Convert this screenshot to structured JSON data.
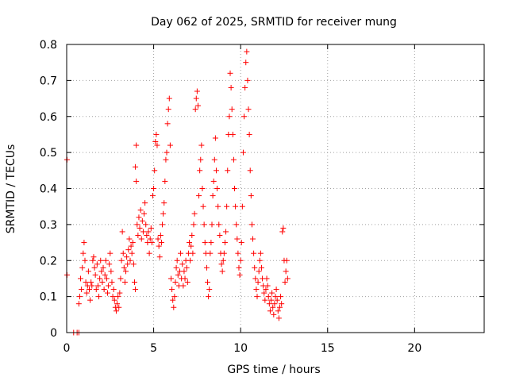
{
  "chart_data": {
    "type": "scatter",
    "title": "Day 062 of 2025, SRMTID for receiver mung",
    "xlabel": "GPS time / hours",
    "ylabel": "SRMTID / TECUs",
    "xlim": [
      0,
      24
    ],
    "ylim": [
      0,
      0.8
    ],
    "x_ticks": [
      0,
      5,
      10,
      15,
      20
    ],
    "y_ticks": [
      0,
      0.1,
      0.2,
      0.3,
      0.4,
      0.5,
      0.6,
      0.7,
      0.8
    ],
    "x_tick_labels": [
      "0",
      "5",
      "10",
      "15",
      "20"
    ],
    "y_tick_labels": [
      "0",
      "0.1",
      "0.2",
      "0.3",
      "0.4",
      "0.5",
      "0.6",
      "0.7",
      "0.8"
    ],
    "grid": true,
    "marker": "+",
    "series_color": "#ff0000",
    "points": [
      [
        0.02,
        0.48
      ],
      [
        0.02,
        0.16
      ],
      [
        0.4,
        0.0
      ],
      [
        0.6,
        0.0
      ],
      [
        0.7,
        0.0
      ],
      [
        0.7,
        0.08
      ],
      [
        0.75,
        0.1
      ],
      [
        0.8,
        0.15
      ],
      [
        0.85,
        0.12
      ],
      [
        0.9,
        0.18
      ],
      [
        0.95,
        0.22
      ],
      [
        1.0,
        0.25
      ],
      [
        1.05,
        0.2
      ],
      [
        1.1,
        0.14
      ],
      [
        1.15,
        0.11
      ],
      [
        1.2,
        0.13
      ],
      [
        1.25,
        0.17
      ],
      [
        1.3,
        0.12
      ],
      [
        1.35,
        0.09
      ],
      [
        1.4,
        0.14
      ],
      [
        1.45,
        0.13
      ],
      [
        1.5,
        0.2
      ],
      [
        1.55,
        0.21
      ],
      [
        1.6,
        0.18
      ],
      [
        1.65,
        0.16
      ],
      [
        1.7,
        0.12
      ],
      [
        1.75,
        0.19
      ],
      [
        1.8,
        0.13
      ],
      [
        1.85,
        0.1
      ],
      [
        1.9,
        0.15
      ],
      [
        1.95,
        0.2
      ],
      [
        2.0,
        0.17
      ],
      [
        2.05,
        0.14
      ],
      [
        2.1,
        0.18
      ],
      [
        2.15,
        0.12
      ],
      [
        2.2,
        0.16
      ],
      [
        2.25,
        0.2
      ],
      [
        2.3,
        0.15
      ],
      [
        2.35,
        0.11
      ],
      [
        2.4,
        0.13
      ],
      [
        2.45,
        0.19
      ],
      [
        2.5,
        0.22
      ],
      [
        2.55,
        0.17
      ],
      [
        2.6,
        0.14
      ],
      [
        2.65,
        0.1
      ],
      [
        2.7,
        0.12
      ],
      [
        2.75,
        0.09
      ],
      [
        2.8,
        0.07
      ],
      [
        2.85,
        0.06
      ],
      [
        2.9,
        0.08
      ],
      [
        2.95,
        0.1
      ],
      [
        3.0,
        0.07
      ],
      [
        3.05,
        0.11
      ],
      [
        3.1,
        0.15
      ],
      [
        3.15,
        0.2
      ],
      [
        3.2,
        0.28
      ],
      [
        3.25,
        0.22
      ],
      [
        3.3,
        0.18
      ],
      [
        3.35,
        0.14
      ],
      [
        3.4,
        0.17
      ],
      [
        3.45,
        0.21
      ],
      [
        3.5,
        0.19
      ],
      [
        3.55,
        0.23
      ],
      [
        3.6,
        0.26
      ],
      [
        3.65,
        0.2
      ],
      [
        3.7,
        0.24
      ],
      [
        3.75,
        0.22
      ],
      [
        3.8,
        0.25
      ],
      [
        3.85,
        0.19
      ],
      [
        3.9,
        0.14
      ],
      [
        3.95,
        0.12
      ],
      [
        3.95,
        0.46
      ],
      [
        4.0,
        0.42
      ],
      [
        4.0,
        0.52
      ],
      [
        4.05,
        0.3
      ],
      [
        4.1,
        0.27
      ],
      [
        4.15,
        0.32
      ],
      [
        4.2,
        0.29
      ],
      [
        4.25,
        0.34
      ],
      [
        4.3,
        0.26
      ],
      [
        4.35,
        0.31
      ],
      [
        4.4,
        0.28
      ],
      [
        4.45,
        0.33
      ],
      [
        4.5,
        0.36
      ],
      [
        4.55,
        0.3
      ],
      [
        4.6,
        0.27
      ],
      [
        4.65,
        0.25
      ],
      [
        4.7,
        0.28
      ],
      [
        4.75,
        0.22
      ],
      [
        4.8,
        0.26
      ],
      [
        4.85,
        0.29
      ],
      [
        4.9,
        0.25
      ],
      [
        4.95,
        0.38
      ],
      [
        5.0,
        0.4
      ],
      [
        5.05,
        0.45
      ],
      [
        5.1,
        0.53
      ],
      [
        5.15,
        0.55
      ],
      [
        5.2,
        0.52
      ],
      [
        5.25,
        0.26
      ],
      [
        5.3,
        0.24
      ],
      [
        5.35,
        0.21
      ],
      [
        5.4,
        0.27
      ],
      [
        5.45,
        0.25
      ],
      [
        5.5,
        0.3
      ],
      [
        5.55,
        0.33
      ],
      [
        5.6,
        0.36
      ],
      [
        5.65,
        0.42
      ],
      [
        5.7,
        0.48
      ],
      [
        5.75,
        0.5
      ],
      [
        5.8,
        0.58
      ],
      [
        5.85,
        0.62
      ],
      [
        5.9,
        0.65
      ],
      [
        5.95,
        0.52
      ],
      [
        6.0,
        0.15
      ],
      [
        6.05,
        0.12
      ],
      [
        6.1,
        0.09
      ],
      [
        6.15,
        0.07
      ],
      [
        6.2,
        0.1
      ],
      [
        6.25,
        0.14
      ],
      [
        6.3,
        0.18
      ],
      [
        6.35,
        0.2
      ],
      [
        6.4,
        0.16
      ],
      [
        6.45,
        0.13
      ],
      [
        6.5,
        0.17
      ],
      [
        6.55,
        0.22
      ],
      [
        6.6,
        0.15
      ],
      [
        6.65,
        0.19
      ],
      [
        6.7,
        0.13
      ],
      [
        6.75,
        0.17
      ],
      [
        6.8,
        0.15
      ],
      [
        6.85,
        0.2
      ],
      [
        6.9,
        0.18
      ],
      [
        6.95,
        0.14
      ],
      [
        7.0,
        0.22
      ],
      [
        7.05,
        0.25
      ],
      [
        7.1,
        0.2
      ],
      [
        7.15,
        0.24
      ],
      [
        7.2,
        0.27
      ],
      [
        7.25,
        0.22
      ],
      [
        7.3,
        0.3
      ],
      [
        7.35,
        0.33
      ],
      [
        7.4,
        0.62
      ],
      [
        7.45,
        0.65
      ],
      [
        7.5,
        0.67
      ],
      [
        7.55,
        0.63
      ],
      [
        7.6,
        0.38
      ],
      [
        7.65,
        0.45
      ],
      [
        7.7,
        0.48
      ],
      [
        7.75,
        0.52
      ],
      [
        7.8,
        0.4
      ],
      [
        7.85,
        0.35
      ],
      [
        7.9,
        0.3
      ],
      [
        7.95,
        0.25
      ],
      [
        8.0,
        0.22
      ],
      [
        8.05,
        0.18
      ],
      [
        8.1,
        0.14
      ],
      [
        8.15,
        0.1
      ],
      [
        8.2,
        0.12
      ],
      [
        8.25,
        0.22
      ],
      [
        8.3,
        0.25
      ],
      [
        8.35,
        0.3
      ],
      [
        8.4,
        0.38
      ],
      [
        8.45,
        0.42
      ],
      [
        8.5,
        0.48
      ],
      [
        8.55,
        0.54
      ],
      [
        8.6,
        0.45
      ],
      [
        8.65,
        0.4
      ],
      [
        8.7,
        0.35
      ],
      [
        8.75,
        0.3
      ],
      [
        8.8,
        0.27
      ],
      [
        8.85,
        0.22
      ],
      [
        8.9,
        0.19
      ],
      [
        8.95,
        0.17
      ],
      [
        9.0,
        0.2
      ],
      [
        9.05,
        0.22
      ],
      [
        9.1,
        0.25
      ],
      [
        9.15,
        0.28
      ],
      [
        9.2,
        0.35
      ],
      [
        9.25,
        0.45
      ],
      [
        9.3,
        0.55
      ],
      [
        9.35,
        0.6
      ],
      [
        9.4,
        0.72
      ],
      [
        9.45,
        0.68
      ],
      [
        9.5,
        0.62
      ],
      [
        9.55,
        0.55
      ],
      [
        9.6,
        0.48
      ],
      [
        9.65,
        0.4
      ],
      [
        9.7,
        0.35
      ],
      [
        9.75,
        0.3
      ],
      [
        9.8,
        0.26
      ],
      [
        9.85,
        0.22
      ],
      [
        9.9,
        0.18
      ],
      [
        9.95,
        0.16
      ],
      [
        10.0,
        0.2
      ],
      [
        10.05,
        0.25
      ],
      [
        10.1,
        0.35
      ],
      [
        10.15,
        0.5
      ],
      [
        10.2,
        0.6
      ],
      [
        10.25,
        0.68
      ],
      [
        10.3,
        0.75
      ],
      [
        10.35,
        0.78
      ],
      [
        10.4,
        0.7
      ],
      [
        10.45,
        0.62
      ],
      [
        10.5,
        0.55
      ],
      [
        10.55,
        0.45
      ],
      [
        10.6,
        0.38
      ],
      [
        10.65,
        0.3
      ],
      [
        10.7,
        0.26
      ],
      [
        10.75,
        0.22
      ],
      [
        10.8,
        0.18
      ],
      [
        10.85,
        0.15
      ],
      [
        10.9,
        0.12
      ],
      [
        10.95,
        0.1
      ],
      [
        11.0,
        0.14
      ],
      [
        11.05,
        0.17
      ],
      [
        11.1,
        0.2
      ],
      [
        11.15,
        0.22
      ],
      [
        11.2,
        0.18
      ],
      [
        11.25,
        0.15
      ],
      [
        11.3,
        0.13
      ],
      [
        11.35,
        0.11
      ],
      [
        11.4,
        0.09
      ],
      [
        11.45,
        0.12
      ],
      [
        11.5,
        0.15
      ],
      [
        11.55,
        0.13
      ],
      [
        11.6,
        0.1
      ],
      [
        11.65,
        0.08
      ],
      [
        11.7,
        0.06
      ],
      [
        11.75,
        0.09
      ],
      [
        11.8,
        0.11
      ],
      [
        11.85,
        0.07
      ],
      [
        11.9,
        0.05
      ],
      [
        11.95,
        0.08
      ],
      [
        12.0,
        0.1
      ],
      [
        12.05,
        0.12
      ],
      [
        12.1,
        0.09
      ],
      [
        12.15,
        0.06
      ],
      [
        12.2,
        0.04
      ],
      [
        12.25,
        0.07
      ],
      [
        12.3,
        0.1
      ],
      [
        12.35,
        0.08
      ],
      [
        12.4,
        0.28
      ],
      [
        12.45,
        0.29
      ],
      [
        12.5,
        0.2
      ],
      [
        12.55,
        0.14
      ],
      [
        12.6,
        0.17
      ],
      [
        12.65,
        0.2
      ],
      [
        12.7,
        0.15
      ]
    ]
  }
}
